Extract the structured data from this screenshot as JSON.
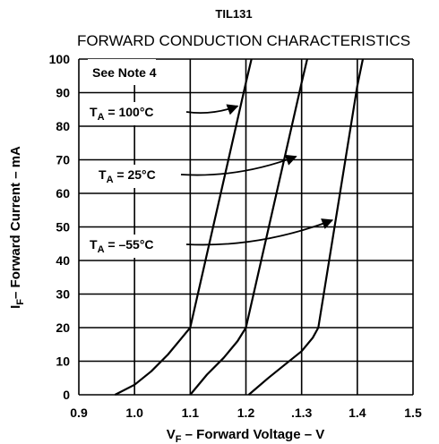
{
  "chart_data": {
    "type": "line",
    "title": "TIL131",
    "subtitle": "FORWARD CONDUCTION CHARACTERISTICS",
    "xlabel": {
      "main": "V",
      "sub": "F",
      "rest": " – Forward Voltage – V"
    },
    "ylabel": {
      "main": "I",
      "sub": "F",
      "rest": "– Forward Current – mA"
    },
    "xlim": [
      0.9,
      1.5
    ],
    "ylim": [
      0,
      100
    ],
    "x_ticks": [
      "0.9",
      "1.0",
      "1.1",
      "1.2",
      ".1.3",
      "1.4",
      "1.5"
    ],
    "y_ticks": [
      "0",
      "10",
      "20",
      "30",
      "40",
      "50",
      "60",
      "70",
      "80",
      "90",
      "100"
    ],
    "grid": true,
    "note": "See Note 4",
    "series": [
      {
        "name": "T_A = 100°C",
        "label": {
          "main": "T",
          "sub": "A",
          "rest": " = 100°C"
        },
        "x": [
          0.965,
          1.0,
          1.03,
          1.06,
          1.085,
          1.1,
          1.2,
          1.21
        ],
        "y": [
          0,
          3,
          7,
          12,
          17,
          20,
          93,
          100
        ]
      },
      {
        "name": "T_A = 25°C",
        "label": {
          "main": "T",
          "sub": "A",
          "rest": " = 25°C"
        },
        "x": [
          1.1,
          1.13,
          1.16,
          1.185,
          1.2,
          1.3,
          1.31
        ],
        "y": [
          0,
          6,
          11,
          16,
          20,
          93,
          100
        ]
      },
      {
        "name": "T_A = –55°C",
        "label": {
          "main": "T",
          "sub": "A",
          "rest": " = –55°C"
        },
        "x": [
          1.205,
          1.24,
          1.27,
          1.3,
          1.32,
          1.33,
          1.4,
          1.41
        ],
        "y": [
          0,
          5,
          9,
          13,
          17,
          20,
          92,
          100
        ]
      }
    ],
    "annotations": [
      {
        "series": 0,
        "arrow_to": [
          1.185,
          86
        ]
      },
      {
        "series": 1,
        "arrow_to": [
          1.29,
          71
        ]
      },
      {
        "series": 2,
        "arrow_to": [
          1.355,
          52
        ]
      }
    ]
  }
}
